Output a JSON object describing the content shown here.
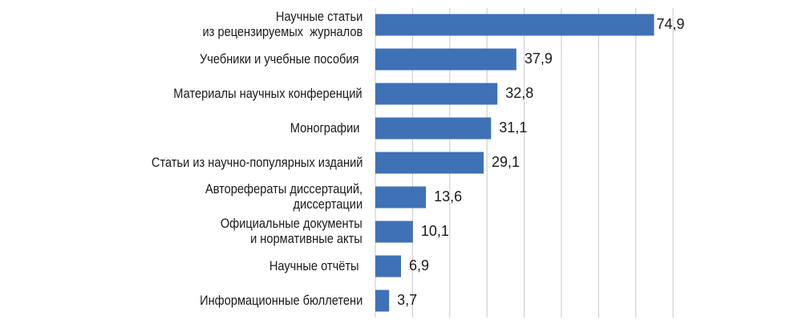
{
  "chart_data": {
    "type": "bar",
    "orientation": "horizontal",
    "categories": [
      "Научные статьи\nиз рецензируемых  журналов",
      "Учебники и учебные пособия ",
      "Материалы научных конференций",
      "Монографии ",
      "Статьи из научно-популярных изданий",
      "Авторефераты диссертаций,\nдиссертации",
      "Официальные документы\nи нормативные акты",
      "Научные отчёты ",
      "Информационные бюллетени"
    ],
    "values": [
      74.9,
      37.9,
      32.8,
      31.1,
      29.1,
      13.6,
      10.1,
      6.9,
      3.7
    ],
    "data_labels": [
      "74,9",
      "37,9",
      "32,8",
      "31,1",
      "29,1",
      "13,6",
      "10,1",
      "6,9",
      "3,7"
    ],
    "title": "",
    "xlabel": "",
    "ylabel": "",
    "xlim": [
      0,
      80
    ],
    "grid": "vertical",
    "grid_step": 10,
    "legend": "none",
    "colors": {
      "bar": "#3f71b6",
      "grid": "#c8c8c8"
    }
  }
}
